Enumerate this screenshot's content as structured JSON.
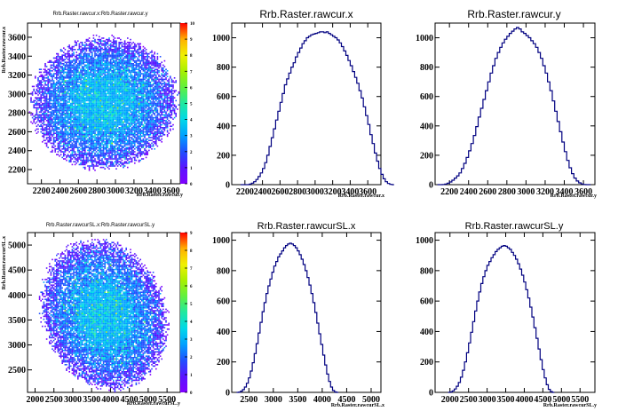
{
  "chart_data": [
    {
      "type": "heatmap",
      "title": "Rrb.Raster.rawcur.x:Rrb.Raster.rawcur.y",
      "xlabel": "Rrb.Raster.rawcur.y",
      "ylabel": "Rrb.Raster.rawcur.x",
      "xlim": [
        2050,
        3700
      ],
      "ylim": [
        2050,
        3750
      ],
      "x_ticks": [
        "2200",
        "2400",
        "2600",
        "2800",
        "3000",
        "3200",
        "3400",
        "3600"
      ],
      "y_ticks": [
        "2200",
        "2400",
        "2600",
        "2800",
        "3000",
        "3200",
        "3400",
        "3600"
      ],
      "blob": {
        "cx": 2870,
        "cy": 2910,
        "rx": 780,
        "ry": 690,
        "tilt": 0.12
      },
      "z_ticks": [
        "0",
        "1",
        "2",
        "3",
        "4",
        "5",
        "6",
        "7",
        "8",
        "9",
        "10"
      ],
      "zlim": [
        0,
        10
      ]
    },
    {
      "type": "histogram",
      "title": "Rrb.Raster.rawcur.x",
      "xlabel": "Rrb.Raster.rawcur.x",
      "xlim": [
        2050,
        3750
      ],
      "ylim": [
        0,
        1100
      ],
      "x_ticks": [
        "2200",
        "2400",
        "2600",
        "2800",
        "3000",
        "3200",
        "3400",
        "3600"
      ],
      "y_ticks": [
        "0",
        "200",
        "400",
        "600",
        "800",
        "1000"
      ],
      "bins": {
        "start": 2150,
        "width": 25
      },
      "values": [
        0,
        0,
        0,
        0,
        4,
        10,
        20,
        35,
        55,
        80,
        110,
        150,
        200,
        260,
        320,
        380,
        440,
        500,
        560,
        620,
        680,
        720,
        760,
        800,
        830,
        870,
        900,
        930,
        960,
        980,
        1000,
        1010,
        1020,
        1025,
        1030,
        1035,
        1040,
        1040,
        1035,
        1040,
        1030,
        1020,
        1010,
        1000,
        985,
        965,
        940,
        910,
        880,
        845,
        810,
        770,
        730,
        690,
        640,
        590,
        530,
        470,
        410,
        340,
        280,
        215,
        160,
        110,
        70,
        40,
        20,
        8,
        2,
        0
      ]
    },
    {
      "type": "histogram",
      "title": "Rrb.Raster.rawcur.y",
      "xlabel": "Rrb.Raster.rawcur.y",
      "xlim": [
        2050,
        3720
      ],
      "ylim": [
        0,
        1100
      ],
      "x_ticks": [
        "2200",
        "2400",
        "2600",
        "2800",
        "3000",
        "3200",
        "3400",
        "3600"
      ],
      "y_ticks": [
        "0",
        "200",
        "400",
        "600",
        "800",
        "1000"
      ],
      "bins": {
        "start": 2075,
        "width": 25
      },
      "values": [
        0,
        0,
        1,
        4,
        10,
        18,
        30,
        45,
        60,
        80,
        110,
        145,
        185,
        230,
        280,
        335,
        395,
        460,
        520,
        580,
        640,
        700,
        760,
        810,
        860,
        900,
        935,
        965,
        990,
        1010,
        1030,
        1045,
        1060,
        1070,
        1060,
        1040,
        1030,
        1015,
        1000,
        980,
        960,
        935,
        900,
        860,
        810,
        760,
        700,
        640,
        570,
        500,
        430,
        360,
        290,
        225,
        165,
        115,
        75,
        45,
        25,
        12,
        5,
        1,
        0,
        0
      ]
    },
    {
      "type": "heatmap",
      "title": "Rrb.Raster.rawcurSL.x:Rrb.Raster.rawcurSL.y",
      "xlabel": "Rrb.Raster.rawcurSL.y",
      "ylabel": "Rrb.Raster.rawcurSL.x",
      "xlim": [
        1800,
        5850
      ],
      "ylim": [
        2050,
        5250
      ],
      "x_ticks": [
        "2000",
        "2500",
        "3000",
        "3500",
        "4000",
        "4500",
        "5000",
        "5500"
      ],
      "y_ticks": [
        "2500",
        "3000",
        "3500",
        "4000",
        "4500",
        "5000"
      ],
      "blob": {
        "cx": 3820,
        "cy": 3620,
        "rx": 1700,
        "ry": 1420,
        "tilt": -0.45
      },
      "z_ticks": [
        "0",
        "1",
        "2",
        "3",
        "4",
        "5",
        "6",
        "7",
        "8",
        "9"
      ],
      "zlim": [
        0,
        9
      ]
    },
    {
      "type": "histogram",
      "title": "Rrb.Raster.rawcurSL.x",
      "xlabel": "Rrb.Raster.rawcurSL.x",
      "xlim": [
        2150,
        5200
      ],
      "ylim": [
        0,
        1050
      ],
      "x_ticks": [
        "2500",
        "3000",
        "3500",
        "4000",
        "4500",
        "5000"
      ],
      "y_ticks": [
        "0",
        "200",
        "400",
        "600",
        "800",
        "1000"
      ],
      "bins": {
        "start": 2250,
        "width": 40
      },
      "values": [
        0,
        2,
        8,
        18,
        35,
        60,
        95,
        140,
        195,
        255,
        320,
        390,
        460,
        530,
        590,
        650,
        700,
        745,
        790,
        830,
        860,
        890,
        910,
        930,
        950,
        965,
        975,
        980,
        975,
        965,
        950,
        930,
        905,
        875,
        840,
        800,
        755,
        705,
        650,
        590,
        525,
        455,
        385,
        315,
        245,
        180,
        120,
        72,
        35,
        12,
        3,
        0
      ]
    },
    {
      "type": "histogram",
      "title": "Rrb.Raster.rawcurSL.y",
      "xlabel": "Rrb.Raster.rawcurSL.y",
      "xlim": [
        1600,
        5900
      ],
      "ylim": [
        0,
        1050
      ],
      "x_ticks": [
        "2000",
        "2500",
        "3000",
        "3500",
        "4000",
        "4500",
        "5000",
        "5500"
      ],
      "y_ticks": [
        "0",
        "200",
        "400",
        "600",
        "800",
        "1000"
      ],
      "bins": {
        "start": 1950,
        "width": 55
      },
      "values": [
        0,
        3,
        10,
        22,
        40,
        65,
        100,
        145,
        200,
        260,
        325,
        395,
        465,
        535,
        600,
        660,
        715,
        760,
        800,
        835,
        860,
        885,
        905,
        925,
        940,
        950,
        960,
        965,
        960,
        950,
        940,
        920,
        900,
        875,
        845,
        810,
        770,
        725,
        675,
        620,
        560,
        495,
        425,
        355,
        285,
        215,
        150,
        95,
        50,
        20,
        5,
        0
      ]
    }
  ],
  "colors": {
    "hist_line": "#000080",
    "palette": [
      "#8000ff",
      "#5a14ff",
      "#2050ff",
      "#00a0ff",
      "#00d8e8",
      "#20e8a0",
      "#60f040",
      "#a8f000",
      "#f0f000",
      "#ffb000",
      "#ff4000",
      "#ff0000"
    ]
  }
}
